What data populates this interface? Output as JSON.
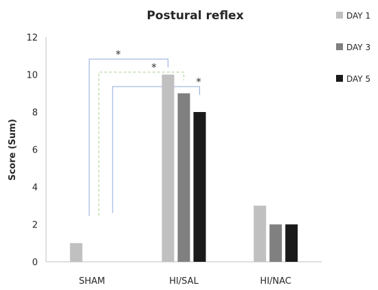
{
  "chart_data": {
    "type": "bar",
    "title": "Postural reflex",
    "xlabel": "",
    "ylabel": "Score (Sum)",
    "ylim": [
      0,
      12
    ],
    "yticks": [
      "0",
      "2",
      "4",
      "6",
      "8",
      "10",
      "12"
    ],
    "categories": [
      "SHAM",
      "HI/SAL",
      "HI/NAC"
    ],
    "series": [
      {
        "name": "DAY 1",
        "color": "#c0c0c0",
        "values": [
          1,
          10,
          3
        ]
      },
      {
        "name": "DAY 3",
        "color": "#808080",
        "values": [
          0,
          9,
          2
        ]
      },
      {
        "name": "DAY 5",
        "color": "#1a1a1a",
        "values": [
          0,
          8,
          2
        ]
      }
    ],
    "legend_position": "top-right",
    "grid": false,
    "annotations": [
      "*",
      "*",
      "*"
    ],
    "significance_colors": {
      "bracket": "#8faadc",
      "bracket_dashed": "#a9d18e"
    }
  }
}
